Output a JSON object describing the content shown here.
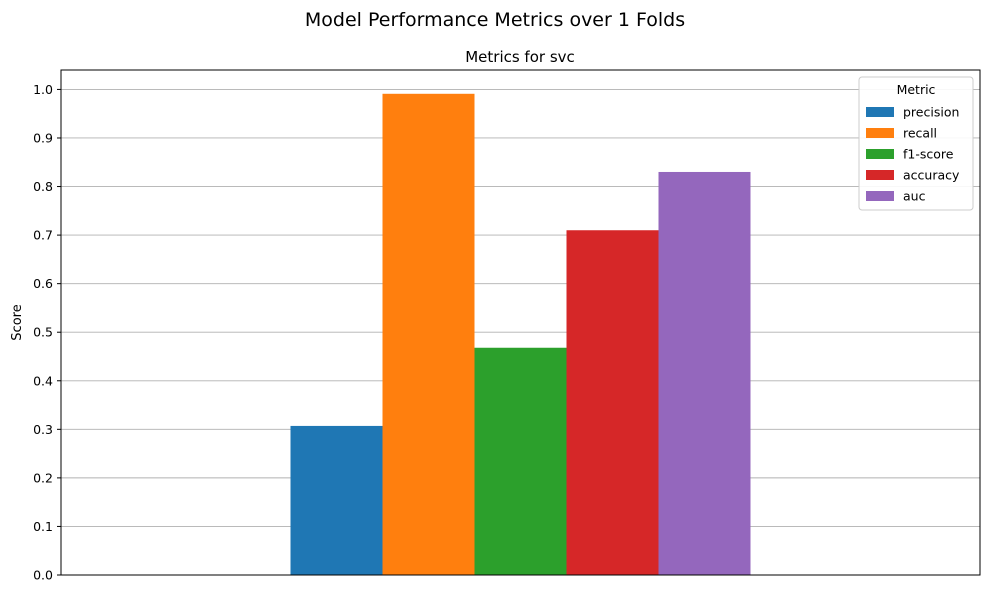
{
  "figure": {
    "suptitle": "Model Performance Metrics over 1 Folds"
  },
  "chart_data": {
    "type": "bar",
    "title": "Metrics for svc",
    "xlabel": "",
    "ylabel": "Score",
    "ylim": [
      0,
      1.04
    ],
    "yticks": [
      "0.0",
      "0.1",
      "0.2",
      "0.3",
      "0.4",
      "0.5",
      "0.6",
      "0.7",
      "0.8",
      "0.9",
      "1.0"
    ],
    "categories": [
      "svc"
    ],
    "grid": "y",
    "legend": {
      "title": "Metric",
      "position": "top-right"
    },
    "series": [
      {
        "name": "precision",
        "values": [
          0.307
        ],
        "color": "#1f77b4"
      },
      {
        "name": "recall",
        "values": [
          0.991
        ],
        "color": "#ff7f0e"
      },
      {
        "name": "f1-score",
        "values": [
          0.468
        ],
        "color": "#2ca02c"
      },
      {
        "name": "accuracy",
        "values": [
          0.71
        ],
        "color": "#d62728"
      },
      {
        "name": "auc",
        "values": [
          0.83
        ],
        "color": "#9467bd"
      }
    ]
  }
}
